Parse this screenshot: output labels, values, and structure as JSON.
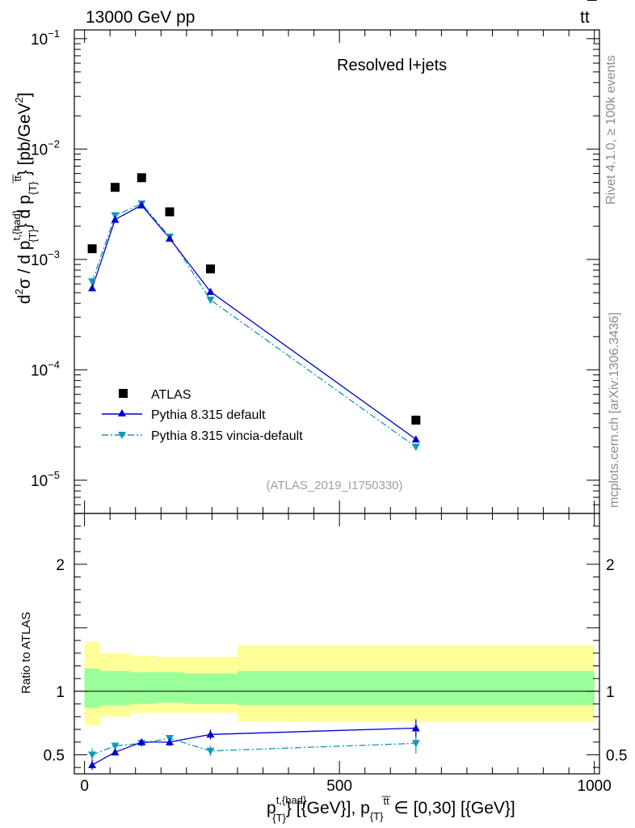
{
  "header": {
    "left": "13000 GeV pp",
    "right_base": "tt",
    "right_overline": "¯"
  },
  "side_text": {
    "rivet": "Rivet 4.1.0, ≥ 100k events",
    "mcplots": "mcplots.cern.ch [arXiv:1306.3436]"
  },
  "chart_data": [
    {
      "panel": "main",
      "type": "scatter",
      "title": "Resolved l+jets",
      "analysis_label": "(ATLAS_2019_I1750330)",
      "ylabel": "d²σ / d p^{t,{had}}_{T} d p_{T}^{tt̄} [pb/GeV²]",
      "ylabel_parts": {
        "d": "d",
        "sup2": "2",
        "sigma_over_d": "σ  /  d p",
        "sup_t_had": "t,{had}",
        "sub_t": "{T}",
        "mid": "} d p",
        "sub_t2": "{T}",
        "sup_tt": "t̅t̅",
        "unit": "} [pb/GeV",
        "unit_sup": "2",
        "close": "]"
      },
      "yscale": "log",
      "ylim": [
        5e-06,
        0.12
      ],
      "yticks": [
        {
          "value": 0.1,
          "base": "10",
          "exp": "−1"
        },
        {
          "value": 0.01,
          "base": "10",
          "exp": "−2"
        },
        {
          "value": 0.001,
          "base": "10",
          "exp": "−3"
        },
        {
          "value": 0.0001,
          "base": "10",
          "exp": "−4"
        },
        {
          "value": 1e-05,
          "base": "10",
          "exp": "−5"
        }
      ],
      "xlim": [
        -20,
        1010
      ],
      "legend": {
        "position": "lower-left"
      },
      "series": [
        {
          "name": "ATLAS",
          "style": "square-marker",
          "color": "#000000",
          "x": [
            15,
            60,
            112,
            167,
            247,
            650
          ],
          "y": [
            0.00125,
            0.0045,
            0.0055,
            0.0027,
            0.00082,
            3.5e-05
          ]
        },
        {
          "name": "Pythia 8.315 default",
          "style": "solid-line-up-triangle",
          "color": "#0000cc",
          "x": [
            15,
            60,
            112,
            167,
            247,
            650
          ],
          "y": [
            0.00055,
            0.0023,
            0.0031,
            0.00155,
            0.00051,
            2.35e-05
          ]
        },
        {
          "name": "Pythia 8.315 vincia-default",
          "style": "dashdot-line-down-triangle",
          "color": "#1099bb",
          "x": [
            15,
            60,
            112,
            167,
            247,
            650
          ],
          "y": [
            0.00063,
            0.0025,
            0.0032,
            0.0016,
            0.00043,
            2e-05
          ]
        }
      ]
    },
    {
      "panel": "ratio",
      "type": "line",
      "ylabel": "Ratio to ATLAS",
      "ylim": [
        0.35,
        2.4
      ],
      "yticks": [
        {
          "value": 2,
          "label": "2"
        },
        {
          "value": 1,
          "label": "1"
        },
        {
          "value": 0.5,
          "label": "0.5"
        }
      ],
      "xlim": [
        -20,
        1010
      ],
      "xticks": [
        {
          "value": 0,
          "label": "0"
        },
        {
          "value": 500,
          "label": "500"
        },
        {
          "value": 1000,
          "label": "1000"
        }
      ],
      "xlabel": "p^{t,{had}}_{T} [{GeV}], p_{T}^{tt̄} ∈ [0,30] [{GeV}]",
      "xlabel_parts": {
        "p": "p",
        "sup_t_had": "t,{had}",
        "sub_t": "{T}",
        "mid": "} [{GeV}], p",
        "sub_t2": "{T}",
        "sup_tt": "t̅t̅",
        "tail": " ∈ [0,30] [{GeV}]"
      },
      "bins": [
        0,
        30,
        90,
        140,
        195,
        300,
        1000
      ],
      "band_total": [
        [
          0.73,
          1.39
        ],
        [
          0.8,
          1.3
        ],
        [
          0.83,
          1.28
        ],
        [
          0.83,
          1.27
        ],
        [
          0.83,
          1.27
        ],
        [
          0.76,
          1.36
        ]
      ],
      "band_stat": [
        [
          0.87,
          1.18
        ],
        [
          0.89,
          1.16
        ],
        [
          0.9,
          1.15
        ],
        [
          0.91,
          1.15
        ],
        [
          0.9,
          1.14
        ],
        [
          0.89,
          1.16
        ]
      ],
      "band_colors": {
        "total": "#ffff99",
        "stat": "#99ff99"
      },
      "series": [
        {
          "name": "Pythia 8.315 default",
          "color": "#0000cc",
          "style": "solid-line-up-triangle",
          "x": [
            15,
            60,
            112,
            167,
            247,
            650
          ],
          "y": [
            0.42,
            0.52,
            0.6,
            0.6,
            0.66,
            0.71
          ],
          "err": [
            0.04,
            0.02,
            0.025,
            0.03,
            0.04,
            0.07
          ]
        },
        {
          "name": "Pythia 8.315 vincia-default",
          "color": "#1099bb",
          "style": "dashdot-line-down-triangle",
          "x": [
            15,
            60,
            112,
            167,
            247,
            650
          ],
          "y": [
            0.5,
            0.57,
            0.59,
            0.63,
            0.53,
            0.59
          ],
          "err": [
            0.05,
            0.02,
            0.02,
            0.02,
            0.04,
            0.08
          ]
        }
      ]
    }
  ]
}
